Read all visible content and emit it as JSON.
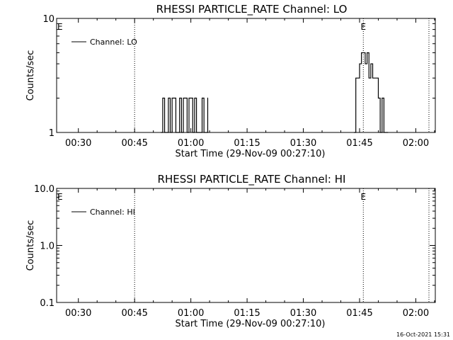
{
  "footer": {
    "timestamp": "16-Oct-2021 15:31"
  },
  "chart_data": [
    {
      "type": "line",
      "title": "RHESSI PARTICLE_RATE Channel: LO",
      "xlabel": "Start Time (29-Nov-09 00:27:10)",
      "ylabel": "Counts/sec",
      "y_scale": "log",
      "ylim": [
        1,
        10
      ],
      "ytick_labels": [
        "1",
        "10"
      ],
      "x_units": "minutes after 00:27:10",
      "xlim": [
        -3,
        98
      ],
      "xtick_labels": [
        "00:30",
        "00:45",
        "01:00",
        "01:15",
        "01:30",
        "01:45",
        "02:00"
      ],
      "legend": {
        "label": "Channel: LO",
        "position": "top-left"
      },
      "event_markers": [
        {
          "x": 17.8,
          "label": ""
        },
        {
          "x": 78.8,
          "label": "E"
        },
        {
          "x": 96.3,
          "label": ""
        }
      ],
      "edge_markers": [
        "E"
      ],
      "series": [
        {
          "name": "Channel: LO",
          "x": [
            24.8,
            25.3,
            25.8,
            26.3,
            26.8,
            27.3,
            27.8,
            28.3,
            28.8,
            29.3,
            29.8,
            30.3,
            30.8,
            31.3,
            31.8,
            32.3,
            32.8,
            33.3,
            33.8,
            34.3,
            34.8,
            35.3,
            35.8,
            36.3,
            36.8,
            37.3,
            76.3,
            76.8,
            77.3,
            77.8,
            78.3,
            78.8,
            79.3,
            79.8,
            80.3,
            80.8,
            81.3,
            81.8,
            82.3,
            82.8,
            83.3,
            83.8,
            84.3,
            84.8,
            85.3
          ],
          "y": [
            1,
            2,
            1,
            1,
            2,
            1,
            2,
            2,
            1,
            1,
            2,
            1,
            2,
            2,
            1,
            2,
            2,
            1,
            2,
            1,
            1,
            1,
            2,
            1,
            1,
            2,
            1,
            3,
            3,
            4,
            5,
            5,
            4,
            5,
            3,
            4,
            3,
            3,
            3,
            2,
            1,
            2,
            1,
            1,
            1
          ]
        }
      ]
    },
    {
      "type": "line",
      "title": "RHESSI PARTICLE_RATE Channel: HI",
      "xlabel": "Start Time (29-Nov-09 00:27:10)",
      "ylabel": "Counts/sec",
      "y_scale": "log",
      "ylim": [
        0.1,
        10
      ],
      "ytick_labels": [
        "0.1",
        "1.0",
        "10.0"
      ],
      "x_units": "minutes after 00:27:10",
      "xlim": [
        -3,
        98
      ],
      "xtick_labels": [
        "00:30",
        "00:45",
        "01:00",
        "01:15",
        "01:30",
        "01:45",
        "02:00"
      ],
      "legend": {
        "label": "Channel: HI",
        "position": "top-left"
      },
      "event_markers": [
        {
          "x": 17.8,
          "label": ""
        },
        {
          "x": 78.8,
          "label": "E"
        },
        {
          "x": 96.3,
          "label": ""
        }
      ],
      "edge_markers": [
        "E"
      ],
      "series": [
        {
          "name": "Channel: HI",
          "x": [],
          "y": []
        }
      ]
    }
  ]
}
